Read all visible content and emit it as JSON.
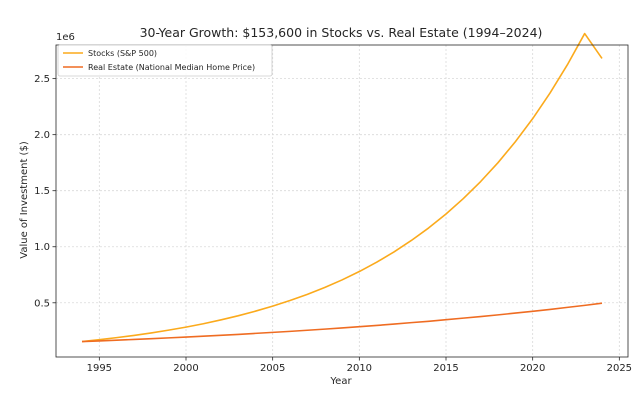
{
  "chart_data": {
    "type": "line",
    "title": "30-Year Growth: $153,600 in Stocks vs. Real Estate (1994–2024)",
    "xlabel": "Year",
    "ylabel": "Value of Investment ($)",
    "y_offset_label": "1e6",
    "xlim": [
      1992.5,
      2025.5
    ],
    "ylim": [
      0.0163,
      2.8
    ],
    "x_ticks": [
      1995,
      2000,
      2005,
      2010,
      2015,
      2020,
      2025
    ],
    "y_ticks": [
      0.5,
      1.0,
      1.5,
      2.0,
      2.5
    ],
    "y_tick_labels": [
      "0.5",
      "1.0",
      "1.5",
      "2.0",
      "2.5"
    ],
    "y_scale_note": "values in millions of dollars (axis multiplier 1e6)",
    "grid": true,
    "legend_position": "top-left",
    "x": [
      1994,
      1995,
      1996,
      1997,
      1998,
      1999,
      2000,
      2001,
      2002,
      2003,
      2004,
      2005,
      2006,
      2007,
      2008,
      2009,
      2010,
      2011,
      2012,
      2013,
      2014,
      2015,
      2016,
      2017,
      2018,
      2019,
      2020,
      2021,
      2022,
      2023,
      2024
    ],
    "series": [
      {
        "name": "Stocks (S&P 500)",
        "color": "#fbaa1c",
        "values": [
          0.154,
          0.171,
          0.189,
          0.209,
          0.231,
          0.256,
          0.283,
          0.313,
          0.347,
          0.384,
          0.425,
          0.47,
          0.52,
          0.575,
          0.636,
          0.704,
          0.779,
          0.862,
          0.954,
          1.056,
          1.168,
          1.292,
          1.43,
          1.582,
          1.75,
          1.937,
          2.143,
          2.371,
          2.623,
          2.902,
          2.68
        ]
      },
      {
        "name": "Real Estate (National Median Home Price)",
        "color": "#ef6c22",
        "values": [
          0.154,
          0.16,
          0.166,
          0.173,
          0.18,
          0.187,
          0.194,
          0.202,
          0.21,
          0.218,
          0.227,
          0.236,
          0.245,
          0.255,
          0.265,
          0.276,
          0.287,
          0.298,
          0.31,
          0.323,
          0.335,
          0.349,
          0.363,
          0.377,
          0.392,
          0.408,
          0.424,
          0.441,
          0.459,
          0.477,
          0.496
        ]
      }
    ]
  }
}
